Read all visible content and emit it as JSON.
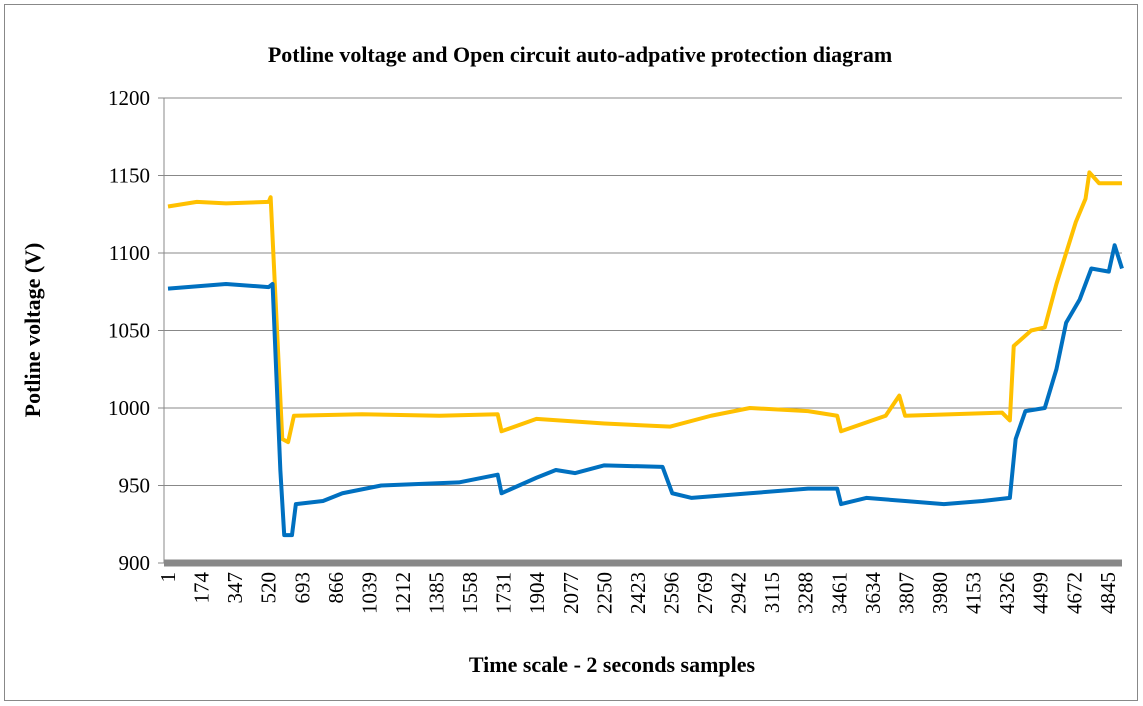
{
  "chart_data": {
    "type": "line",
    "title": "Potline voltage and Open circuit auto-adpative protection diagram",
    "x_label": "Time scale - 2 seconds samples",
    "y_label": "Potline voltage (V)",
    "xlim": [
      1,
      4918
    ],
    "xticks": [
      1,
      174,
      347,
      520,
      693,
      866,
      1039,
      1212,
      1385,
      1558,
      1731,
      1904,
      2077,
      2250,
      2423,
      2596,
      2769,
      2942,
      3115,
      3288,
      3461,
      3634,
      3807,
      3980,
      4153,
      4326,
      4499,
      4672,
      4845
    ],
    "ylim": [
      900,
      1200
    ],
    "yticks": [
      900,
      950,
      1000,
      1050,
      1100,
      1150,
      1200
    ],
    "grid": true,
    "series": [
      {
        "color": "#ffc000",
        "x": [
          1,
          150,
          300,
          520,
          530,
          590,
          620,
          650,
          1000,
          1400,
          1700,
          1720,
          1900,
          2250,
          2590,
          2800,
          3000,
          3300,
          3450,
          3470,
          3700,
          3770,
          3800,
          4300,
          4340,
          4360,
          4450,
          4520,
          4580,
          4630,
          4680,
          4730,
          4750,
          4800,
          4918
        ],
        "values": [
          1130,
          1133,
          1132,
          1133,
          1136,
          980,
          978,
          995,
          996,
          995,
          996,
          985,
          993,
          990,
          988,
          995,
          1000,
          998,
          995,
          985,
          995,
          1008,
          995,
          997,
          992,
          1040,
          1050,
          1052,
          1080,
          1100,
          1120,
          1135,
          1152,
          1145,
          1145
        ]
      },
      {
        "color": "#0070c0",
        "x": [
          1,
          300,
          520,
          540,
          560,
          580,
          600,
          640,
          660,
          800,
          900,
          1100,
          1500,
          1700,
          1720,
          1900,
          2000,
          2100,
          2250,
          2550,
          2600,
          2700,
          3000,
          3300,
          3450,
          3470,
          3600,
          3800,
          4000,
          4200,
          4340,
          4370,
          4420,
          4520,
          4580,
          4630,
          4700,
          4760,
          4850,
          4880,
          4918
        ],
        "values": [
          1077,
          1080,
          1078,
          1080,
          1020,
          960,
          918,
          918,
          938,
          940,
          945,
          950,
          952,
          957,
          945,
          955,
          960,
          958,
          963,
          962,
          945,
          942,
          945,
          948,
          948,
          938,
          942,
          940,
          938,
          940,
          942,
          980,
          998,
          1000,
          1025,
          1055,
          1070,
          1090,
          1088,
          1105,
          1090
        ]
      }
    ]
  }
}
